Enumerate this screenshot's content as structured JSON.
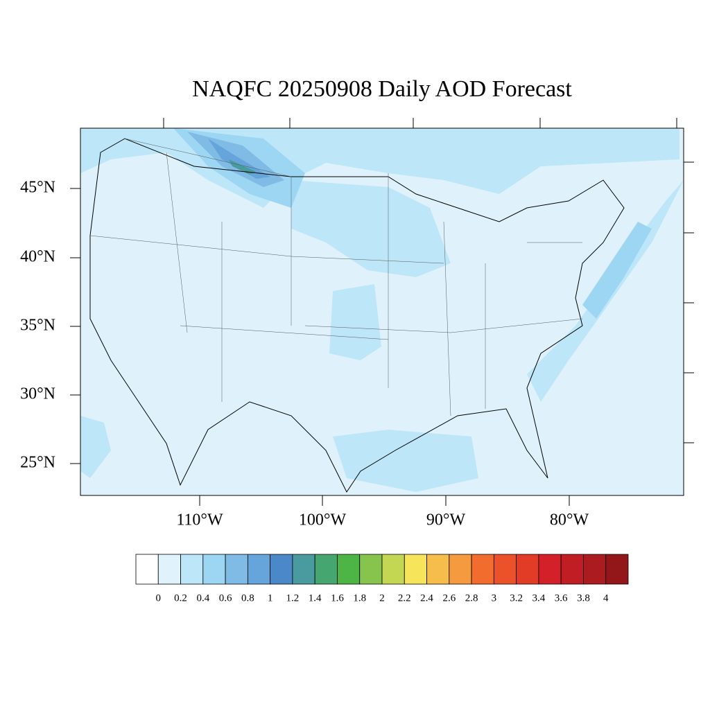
{
  "title": "NAQFC 20250908 Daily AOD Forecast",
  "map": {
    "lat_labels": [
      "45°N",
      "40°N",
      "35°N",
      "30°N",
      "25°N"
    ],
    "lon_labels": [
      "110°W",
      "100°W",
      "90°W",
      "80°W"
    ]
  },
  "colorbar": {
    "levels": [
      0,
      0.2,
      0.4,
      0.6,
      0.8,
      1,
      1.2,
      1.4,
      1.6,
      1.8,
      2,
      2.2,
      2.4,
      2.6,
      2.8,
      3,
      3.2,
      3.4,
      3.6,
      3.8,
      4
    ],
    "colors": [
      "#ffffff",
      "#e0f3fc",
      "#bde6f8",
      "#9dd6f3",
      "#7fbbe4",
      "#66a5db",
      "#4a88c8",
      "#4a9b9f",
      "#46a66f",
      "#4db546",
      "#86c44d",
      "#c3d753",
      "#f6e55a",
      "#f6bd4a",
      "#f59a3f",
      "#f26c2e",
      "#ec5229",
      "#e23c27",
      "#d42028",
      "#c01d24",
      "#ac1b20",
      "#931619"
    ]
  }
}
